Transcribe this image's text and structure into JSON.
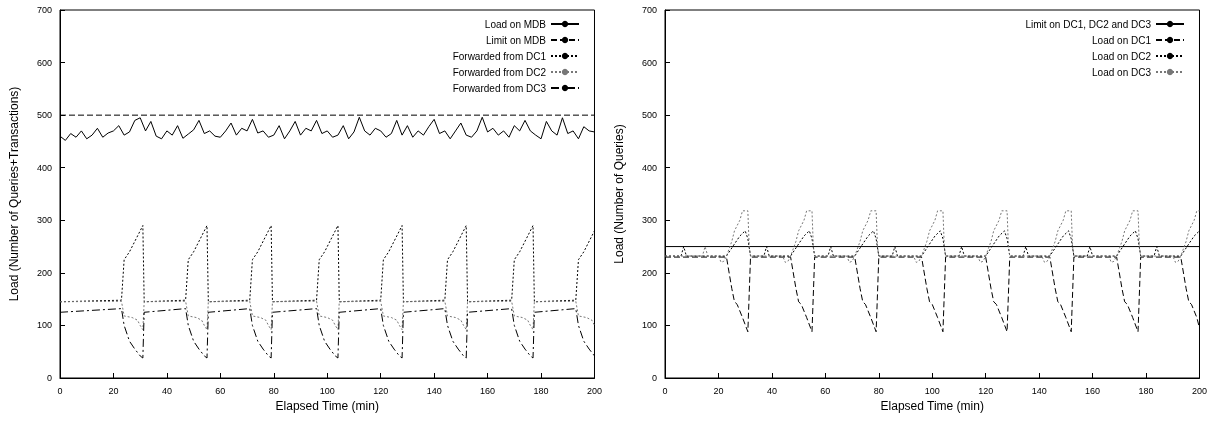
{
  "chart_data": [
    {
      "type": "line",
      "xlabel": "Elapsed Time (min)",
      "ylabel": "Load (Number of Queries+Transactions)",
      "xlim": [
        0,
        200
      ],
      "xticks": [
        0,
        20,
        40,
        60,
        80,
        100,
        120,
        140,
        160,
        180,
        200
      ],
      "ylim": [
        0,
        700
      ],
      "yticks": [
        0,
        100,
        200,
        300,
        400,
        500,
        600,
        700
      ],
      "legend": "top right",
      "grid": false,
      "marker": "none",
      "series": [
        {
          "name": "Load on MDB",
          "color": "#000000",
          "line_style": "solid",
          "x": [
            0,
            2,
            4,
            6,
            8,
            10,
            12,
            14,
            16,
            18,
            20,
            22,
            24,
            26,
            28,
            30,
            32,
            34,
            36,
            38,
            40,
            42,
            44,
            46,
            48,
            50,
            52,
            54,
            56,
            58,
            60,
            62,
            64,
            66,
            68,
            70,
            72,
            74,
            76,
            78,
            80,
            82,
            84,
            86,
            88,
            90,
            92,
            94,
            96,
            98,
            100,
            102,
            104,
            106,
            108,
            110,
            112,
            114,
            116,
            118,
            120,
            122,
            124,
            126,
            128,
            130,
            132,
            134,
            136,
            138,
            140,
            142,
            144,
            146,
            148,
            150,
            152,
            154,
            156,
            158,
            160,
            162,
            164,
            166,
            168,
            170,
            172,
            174,
            176,
            178,
            180,
            182,
            184,
            186,
            188,
            190,
            192,
            194,
            196,
            198,
            200
          ],
          "values": [
            460,
            452,
            465,
            458,
            470,
            455,
            462,
            475,
            458,
            466,
            470,
            480,
            462,
            468,
            490,
            495,
            470,
            488,
            460,
            455,
            470,
            462,
            480,
            456,
            464,
            472,
            490,
            465,
            470,
            460,
            458,
            470,
            485,
            462,
            475,
            470,
            492,
            466,
            470,
            458,
            462,
            480,
            455,
            470,
            488,
            462,
            475,
            470,
            490,
            465,
            470,
            458,
            462,
            480,
            455,
            468,
            496,
            470,
            462,
            475,
            470,
            458,
            465,
            490,
            462,
            480,
            458,
            470,
            462,
            478,
            492,
            465,
            470,
            455,
            470,
            485,
            462,
            458,
            470,
            496,
            468,
            475,
            462,
            470,
            458,
            480,
            470,
            490,
            470,
            462,
            455,
            488,
            470,
            462,
            495,
            465,
            470,
            455,
            478,
            470,
            468
          ]
        },
        {
          "name": "Limit on MDB",
          "color": "#000000",
          "line_style": "dashed",
          "x": [
            0,
            200
          ],
          "values": [
            500,
            500
          ]
        },
        {
          "name": "Forwarded from DC1",
          "color": "#000000",
          "line_style": "dotted",
          "x": [
            0,
            23,
            24,
            26,
            29,
            31,
            31.5,
            47,
            48,
            50,
            53,
            55,
            55.5,
            71,
            72,
            74,
            77,
            79,
            79.5,
            96,
            97,
            99,
            102,
            104,
            104.5,
            120,
            121,
            123,
            126,
            128,
            128.5,
            144,
            145,
            147,
            150,
            152,
            152.5,
            169,
            170,
            172,
            175,
            177,
            177.5,
            193,
            194,
            196,
            199,
            200
          ],
          "values": [
            145,
            148,
            225,
            240,
            270,
            290,
            145,
            148,
            225,
            240,
            270,
            290,
            145,
            148,
            225,
            240,
            270,
            290,
            145,
            148,
            225,
            240,
            270,
            290,
            145,
            148,
            225,
            240,
            270,
            290,
            145,
            148,
            225,
            240,
            270,
            290,
            145,
            148,
            225,
            240,
            270,
            290,
            145,
            148,
            225,
            240,
            270,
            280
          ]
        },
        {
          "name": "Forwarded from DC2",
          "color": "#777777",
          "line_style": "dotted",
          "x": [
            0,
            23,
            24,
            27,
            29,
            30,
            31,
            31.5,
            47,
            48,
            51,
            53,
            54,
            55,
            55.5,
            71,
            72,
            75,
            77,
            78,
            79,
            79.5,
            96,
            97,
            100,
            102,
            103,
            104,
            104.5,
            120,
            121,
            124,
            126,
            127,
            128,
            128.5,
            144,
            145,
            148,
            150,
            151,
            152,
            152.5,
            169,
            170,
            173,
            175,
            176,
            177,
            177.5,
            193,
            194,
            197,
            199,
            200
          ],
          "values": [
            145,
            146,
            118,
            115,
            110,
            100,
            92,
            145,
            146,
            118,
            115,
            110,
            100,
            92,
            145,
            146,
            118,
            115,
            110,
            100,
            92,
            145,
            146,
            118,
            115,
            110,
            100,
            92,
            145,
            146,
            118,
            115,
            110,
            100,
            92,
            145,
            146,
            118,
            115,
            110,
            100,
            92,
            145,
            146,
            118,
            115,
            110,
            100,
            92,
            145,
            146,
            118,
            115,
            110,
            100
          ]
        },
        {
          "name": "Forwarded from DC3",
          "color": "#000000",
          "line_style": "dashdot",
          "x": [
            0,
            23,
            24,
            26,
            28,
            30,
            31,
            31.5,
            47,
            48,
            50,
            52,
            54,
            55,
            55.5,
            71,
            72,
            74,
            76,
            78,
            79,
            79.5,
            96,
            97,
            99,
            101,
            103,
            104,
            104.5,
            120,
            121,
            123,
            125,
            127,
            128,
            128.5,
            144,
            145,
            147,
            149,
            151,
            152,
            152.5,
            169,
            170,
            172,
            174,
            176,
            177,
            177.5,
            193,
            194,
            196,
            198,
            200
          ],
          "values": [
            125,
            132,
            100,
            70,
            55,
            42,
            38,
            125,
            132,
            100,
            70,
            55,
            42,
            38,
            125,
            132,
            100,
            70,
            55,
            42,
            38,
            125,
            132,
            100,
            70,
            55,
            42,
            38,
            125,
            132,
            100,
            70,
            55,
            42,
            38,
            125,
            132,
            100,
            70,
            55,
            42,
            38,
            125,
            132,
            100,
            70,
            55,
            42,
            38,
            125,
            132,
            100,
            70,
            55,
            42
          ]
        }
      ]
    },
    {
      "type": "line",
      "xlabel": "Elapsed Time (min)",
      "ylabel": "Load (Number of Queries)",
      "xlim": [
        0,
        200
      ],
      "xticks": [
        0,
        20,
        40,
        60,
        80,
        100,
        120,
        140,
        160,
        180,
        200
      ],
      "ylim": [
        0,
        700
      ],
      "yticks": [
        0,
        100,
        200,
        300,
        400,
        500,
        600,
        700
      ],
      "legend": "top right",
      "grid": false,
      "marker": "none",
      "series": [
        {
          "name": "Limit on DC1, DC2 and DC3",
          "color": "#000000",
          "line_style": "solid",
          "x": [
            0,
            200
          ],
          "values": [
            250,
            250
          ]
        },
        {
          "name": "Load on DC1",
          "color": "#000000",
          "line_style": "dashed",
          "x": [
            0,
            23,
            25,
            26,
            27,
            29,
            31,
            32,
            47,
            49,
            50,
            51,
            53,
            55,
            56,
            71,
            73,
            74,
            75,
            77,
            79,
            80,
            96,
            98,
            99,
            100,
            102,
            104,
            105,
            120,
            122,
            123,
            124,
            126,
            128,
            129,
            144,
            146,
            147,
            148,
            150,
            152,
            153,
            169,
            171,
            172,
            173,
            175,
            177,
            178,
            193,
            195,
            196,
            197,
            199,
            200
          ],
          "values": [
            230,
            230,
            170,
            145,
            140,
            115,
            88,
            230,
            230,
            170,
            145,
            140,
            115,
            88,
            230,
            230,
            170,
            145,
            140,
            115,
            88,
            230,
            230,
            170,
            145,
            140,
            115,
            88,
            230,
            230,
            170,
            145,
            140,
            115,
            88,
            230,
            230,
            170,
            145,
            140,
            115,
            88,
            230,
            230,
            170,
            145,
            140,
            115,
            88,
            230,
            230,
            170,
            145,
            140,
            115,
            95
          ]
        },
        {
          "name": "Load on DC2",
          "color": "#000000",
          "line_style": "dotted",
          "x": [
            0,
            6,
            7,
            8,
            23,
            26,
            28,
            30,
            31,
            32,
            37,
            38,
            39,
            47,
            50,
            52,
            54,
            55,
            56,
            61,
            62,
            63,
            71,
            74,
            76,
            78,
            79,
            80,
            85,
            86,
            87,
            96,
            99,
            101,
            103,
            104,
            105,
            110,
            111,
            112,
            120,
            123,
            125,
            127,
            128,
            129,
            134,
            135,
            136,
            144,
            147,
            149,
            151,
            152,
            153,
            158,
            159,
            160,
            169,
            172,
            174,
            176,
            177,
            178,
            183,
            184,
            185,
            193,
            196,
            198,
            200
          ],
          "values": [
            232,
            232,
            250,
            232,
            232,
            255,
            270,
            280,
            265,
            232,
            232,
            250,
            232,
            232,
            255,
            270,
            280,
            265,
            232,
            232,
            250,
            232,
            232,
            255,
            270,
            280,
            265,
            232,
            232,
            250,
            232,
            232,
            255,
            270,
            280,
            265,
            232,
            232,
            250,
            232,
            232,
            255,
            270,
            280,
            265,
            232,
            232,
            250,
            232,
            232,
            255,
            270,
            280,
            265,
            232,
            232,
            250,
            232,
            232,
            255,
            270,
            280,
            265,
            232,
            232,
            250,
            232,
            232,
            255,
            270,
            280
          ]
        },
        {
          "name": "Load on DC3",
          "color": "#777777",
          "line_style": "dotted",
          "x": [
            0,
            14,
            15,
            16,
            20,
            21,
            22,
            23,
            25,
            26,
            28,
            29,
            31,
            31.5,
            32,
            44,
            45,
            46,
            47,
            49,
            50,
            52,
            53,
            55,
            55.5,
            56,
            68,
            69,
            70,
            71,
            73,
            74,
            76,
            77,
            79,
            79.5,
            80,
            93,
            94,
            95,
            96,
            98,
            99,
            101,
            102,
            104,
            104.5,
            105,
            117,
            118,
            119,
            120,
            122,
            123,
            125,
            126,
            128,
            128.5,
            129,
            141,
            142,
            143,
            144,
            146,
            147,
            149,
            150,
            152,
            152.5,
            153,
            166,
            167,
            168,
            169,
            171,
            172,
            174,
            175,
            177,
            177.5,
            178,
            190,
            191,
            192,
            193,
            195,
            196,
            198,
            199,
            200
          ],
          "values": [
            232,
            232,
            250,
            232,
            232,
            220,
            222,
            232,
            260,
            280,
            300,
            318,
            318,
            250,
            232,
            232,
            220,
            222,
            232,
            260,
            280,
            300,
            318,
            318,
            250,
            232,
            232,
            220,
            222,
            232,
            260,
            280,
            300,
            318,
            318,
            250,
            232,
            232,
            220,
            222,
            232,
            260,
            280,
            300,
            318,
            318,
            250,
            232,
            232,
            220,
            222,
            232,
            260,
            280,
            300,
            318,
            318,
            250,
            232,
            232,
            220,
            222,
            232,
            260,
            280,
            300,
            318,
            318,
            250,
            232,
            232,
            220,
            222,
            232,
            260,
            280,
            300,
            318,
            318,
            250,
            232,
            232,
            220,
            222,
            232,
            260,
            280,
            300,
            318,
            318
          ]
        }
      ]
    }
  ]
}
